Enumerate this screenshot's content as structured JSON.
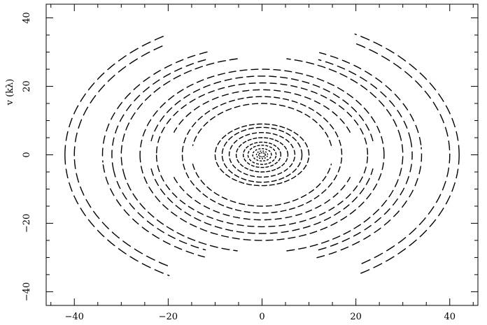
{
  "chart_data": {
    "type": "scatter",
    "title": "",
    "xlabel": "",
    "ylabel": "v (kλ)",
    "xlim": [
      -46,
      46
    ],
    "ylim": [
      -44,
      44
    ],
    "x_ticks": [
      -40,
      -20,
      0,
      20,
      40
    ],
    "y_ticks": [
      -40,
      -20,
      0,
      20,
      40
    ],
    "x_tick_labels": [
      "−40",
      "−20",
      "0",
      "20",
      "40"
    ],
    "y_tick_labels": [
      "−40",
      "−20",
      "0",
      "20",
      "40"
    ],
    "grid": false,
    "legend": "none",
    "uv_tracks": [
      {
        "a": 42.0,
        "b": 40.0,
        "dash": [
          14,
          6
        ],
        "arcs": [
          [
            0,
            62
          ],
          [
            120,
            180
          ],
          [
            180,
            242
          ],
          [
            300,
            360
          ]
        ]
      },
      {
        "a": 40.0,
        "b": 37.5,
        "dash": [
          14,
          6
        ],
        "arcs": [
          [
            2,
            60
          ],
          [
            122,
            182
          ],
          [
            182,
            240
          ],
          [
            302,
            362
          ]
        ]
      },
      {
        "a": 34.0,
        "b": 32.0,
        "dash": [
          12,
          6
        ],
        "arcs": [
          [
            5,
            70
          ],
          [
            110,
            185
          ],
          [
            185,
            250
          ],
          [
            290,
            365
          ]
        ]
      },
      {
        "a": 32.0,
        "b": 30.0,
        "dash": [
          12,
          6
        ],
        "arcs": [
          [
            8,
            68
          ],
          [
            112,
            188
          ],
          [
            188,
            248
          ],
          [
            292,
            368
          ]
        ]
      },
      {
        "a": 30.0,
        "b": 28.5,
        "dash": [
          12,
          5
        ],
        "arcs": [
          [
            10,
            80
          ],
          [
            100,
            190
          ],
          [
            190,
            260
          ],
          [
            280,
            370
          ]
        ]
      },
      {
        "a": 26.0,
        "b": 25.0,
        "dash": [
          11,
          5
        ],
        "arcs": [
          [
            0,
            180
          ],
          [
            180,
            360
          ]
        ]
      },
      {
        "a": 24.0,
        "b": 23.0,
        "dash": [
          11,
          5
        ],
        "arcs": [
          [
            10,
            170
          ],
          [
            190,
            350
          ]
        ]
      },
      {
        "a": 22.5,
        "b": 21.0,
        "dash": [
          10,
          5
        ],
        "arcs": [
          [
            0,
            180
          ],
          [
            180,
            360
          ]
        ]
      },
      {
        "a": 20.0,
        "b": 19.0,
        "dash": [
          10,
          5
        ],
        "arcs": [
          [
            20,
            160
          ],
          [
            200,
            340
          ]
        ]
      },
      {
        "a": 17.0,
        "b": 17.0,
        "dash": [
          9,
          4
        ],
        "arcs": [
          [
            0,
            180
          ],
          [
            180,
            360
          ]
        ]
      },
      {
        "a": 15.0,
        "b": 15.0,
        "dash": [
          9,
          4
        ],
        "arcs": [
          [
            10,
            170
          ],
          [
            190,
            350
          ]
        ]
      },
      {
        "a": 10.0,
        "b": 9.0,
        "dash": [
          8,
          3
        ],
        "arcs": [
          [
            0,
            360
          ]
        ]
      },
      {
        "a": 8.5,
        "b": 8.0,
        "dash": [
          8,
          3
        ],
        "arcs": [
          [
            0,
            360
          ]
        ]
      },
      {
        "a": 7.0,
        "b": 6.5,
        "dash": [
          7,
          3
        ],
        "arcs": [
          [
            0,
            360
          ]
        ]
      },
      {
        "a": 5.5,
        "b": 5.0,
        "dash": [
          6,
          2
        ],
        "arcs": [
          [
            0,
            360
          ]
        ]
      },
      {
        "a": 4.0,
        "b": 3.7,
        "dash": [
          5,
          2
        ],
        "arcs": [
          [
            0,
            360
          ]
        ]
      },
      {
        "a": 3.0,
        "b": 2.8,
        "dash": [
          4,
          2
        ],
        "arcs": [
          [
            0,
            360
          ]
        ]
      },
      {
        "a": 2.0,
        "b": 1.8,
        "dash": [
          3,
          2
        ],
        "arcs": [
          [
            0,
            360
          ]
        ]
      },
      {
        "a": 1.2,
        "b": 1.1,
        "dash": [
          2,
          2
        ],
        "arcs": [
          [
            0,
            360
          ]
        ]
      },
      {
        "a": 0.7,
        "b": 0.6,
        "dash": [
          2,
          1
        ],
        "arcs": [
          [
            0,
            360
          ]
        ]
      }
    ]
  }
}
